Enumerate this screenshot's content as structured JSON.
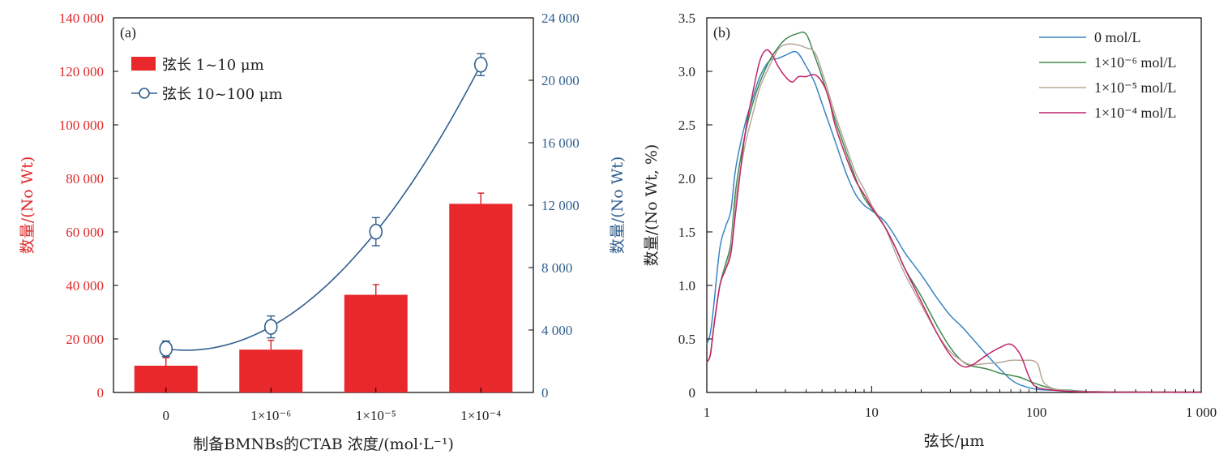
{
  "chart_data": [
    {
      "type": "bar",
      "panel_label": "(a)",
      "xlabel": "制备BMNBs的CTAB 浓度/(mol·L⁻¹)",
      "categories": [
        "0",
        "1×10⁻⁶",
        "1×10⁻⁵",
        "1×10⁻⁴"
      ],
      "ylabel": "数量/(No Wt)",
      "ylim": [
        0,
        140000
      ],
      "yticks": [
        "0",
        "20 000",
        "40 000",
        "60 000",
        "80 000",
        "100 000",
        "120 000",
        "140 000"
      ],
      "y2label": "数量/(No Wt)",
      "y2lim": [
        0,
        24000
      ],
      "y2ticks": [
        "0",
        "4 000",
        "8 000",
        "12 000",
        "16 000",
        "20 000",
        "24 000"
      ],
      "legend_position": "top-left",
      "color_bar": "#e8282a",
      "color_line": "#2f5e8e",
      "series": [
        {
          "name": "弦长 1~10 μm",
          "kind": "bar",
          "axis": "left",
          "values": [
            10000,
            16000,
            36500,
            70500
          ],
          "errors": [
            3000,
            3500,
            3800,
            4000
          ]
        },
        {
          "name": "弦长 10~100 μm",
          "kind": "line",
          "axis": "right",
          "values": [
            2800,
            4200,
            10300,
            21000
          ],
          "errors": [
            500,
            700,
            900,
            700
          ]
        }
      ]
    },
    {
      "type": "line",
      "panel_label": "(b)",
      "xlabel": "弦长/μm",
      "ylabel": "数量/(No Wt, %)",
      "xscale": "log",
      "xlim": [
        1,
        1000
      ],
      "xticks": [
        "1",
        "10",
        "100",
        "1 000"
      ],
      "ylim": [
        0,
        3.5
      ],
      "yticks": [
        "0",
        "0.5",
        "1.0",
        "1.5",
        "2.0",
        "2.5",
        "3.0",
        "3.5"
      ],
      "legend_position": "top-right",
      "series": [
        {
          "name": "0 mol/L",
          "color": "#3a84c4",
          "x": [
            1.0,
            1.05,
            1.1,
            1.2,
            1.3,
            1.4,
            1.5,
            1.7,
            1.9,
            2.1,
            2.4,
            2.7,
            3.0,
            3.5,
            4.0,
            4.5,
            5.0,
            6.0,
            7.0,
            8.0,
            9.0,
            10.0,
            12.0,
            14.0,
            16.0,
            20.0,
            25.0,
            30.0,
            35.0,
            40.0,
            50.0,
            60.0,
            70.0,
            80.0,
            100.0,
            130.0,
            160.0,
            200.0,
            300.0,
            500.0,
            1000.0
          ],
          "y": [
            0.45,
            0.55,
            0.8,
            1.35,
            1.55,
            1.7,
            2.1,
            2.5,
            2.75,
            2.95,
            3.1,
            3.12,
            3.15,
            3.18,
            3.05,
            2.9,
            2.7,
            2.35,
            2.05,
            1.85,
            1.75,
            1.7,
            1.6,
            1.45,
            1.3,
            1.1,
            0.88,
            0.72,
            0.62,
            0.52,
            0.35,
            0.22,
            0.12,
            0.07,
            0.03,
            0.02,
            0.02,
            0.01,
            0.005,
            0.003,
            0.003
          ]
        },
        {
          "name": "1×10⁻⁶ mol/L",
          "color": "#3f8a4c",
          "x": [
            1.0,
            1.05,
            1.1,
            1.2,
            1.3,
            1.4,
            1.5,
            1.7,
            1.9,
            2.1,
            2.4,
            2.7,
            3.0,
            3.5,
            4.0,
            4.5,
            5.0,
            6.0,
            7.0,
            8.0,
            9.0,
            10.0,
            12.0,
            14.0,
            16.0,
            20.0,
            25.0,
            30.0,
            35.0,
            40.0,
            50.0,
            60.0,
            70.0,
            80.0,
            100.0,
            130.0,
            160.0,
            200.0,
            300.0,
            500.0,
            1000.0
          ],
          "y": [
            0.28,
            0.35,
            0.6,
            1.0,
            1.2,
            1.4,
            1.9,
            2.4,
            2.7,
            2.9,
            3.1,
            3.22,
            3.3,
            3.35,
            3.35,
            3.15,
            2.95,
            2.55,
            2.25,
            2.0,
            1.82,
            1.72,
            1.55,
            1.35,
            1.15,
            0.9,
            0.62,
            0.42,
            0.3,
            0.25,
            0.22,
            0.18,
            0.16,
            0.14,
            0.08,
            0.03,
            0.02,
            0.01,
            0.005,
            0.003,
            0.003
          ]
        },
        {
          "name": "1×10⁻⁵ mol/L",
          "color": "#b7a89a",
          "x": [
            1.0,
            1.05,
            1.1,
            1.2,
            1.3,
            1.4,
            1.5,
            1.7,
            1.9,
            2.1,
            2.4,
            2.7,
            3.0,
            3.5,
            4.0,
            4.5,
            5.0,
            6.0,
            7.0,
            8.0,
            9.0,
            10.0,
            12.0,
            14.0,
            16.0,
            20.0,
            25.0,
            30.0,
            35.0,
            40.0,
            50.0,
            60.0,
            70.0,
            80.0,
            100.0,
            110.0,
            130.0,
            160.0,
            200.0,
            300.0,
            500.0,
            1000.0
          ],
          "y": [
            0.28,
            0.35,
            0.6,
            1.0,
            1.15,
            1.35,
            1.8,
            2.3,
            2.6,
            2.85,
            3.05,
            3.2,
            3.25,
            3.25,
            3.22,
            3.18,
            3.0,
            2.6,
            2.3,
            2.05,
            1.9,
            1.75,
            1.55,
            1.3,
            1.1,
            0.82,
            0.55,
            0.38,
            0.3,
            0.26,
            0.27,
            0.28,
            0.3,
            0.3,
            0.28,
            0.1,
            0.03,
            0.015,
            0.01,
            0.005,
            0.003,
            0.003
          ]
        },
        {
          "name": "1×10⁻⁴ mol/L",
          "color": "#c0246a",
          "x": [
            1.0,
            1.05,
            1.1,
            1.2,
            1.3,
            1.4,
            1.5,
            1.7,
            1.9,
            2.1,
            2.3,
            2.5,
            2.7,
            3.0,
            3.3,
            3.6,
            4.0,
            4.5,
            5.0,
            5.5,
            6.0,
            7.0,
            8.0,
            9.0,
            10.0,
            12.0,
            14.0,
            16.0,
            20.0,
            25.0,
            30.0,
            35.0,
            40.0,
            50.0,
            60.0,
            70.0,
            80.0,
            90.0,
            100.0,
            130.0,
            160.0,
            200.0,
            300.0,
            500.0,
            1000.0
          ],
          "y": [
            0.28,
            0.35,
            0.6,
            1.0,
            1.15,
            1.3,
            1.7,
            2.4,
            2.8,
            3.1,
            3.2,
            3.15,
            3.05,
            2.95,
            2.9,
            2.95,
            2.95,
            2.97,
            2.9,
            2.75,
            2.5,
            2.2,
            1.98,
            1.85,
            1.73,
            1.55,
            1.35,
            1.15,
            0.85,
            0.55,
            0.35,
            0.25,
            0.25,
            0.35,
            0.42,
            0.45,
            0.35,
            0.15,
            0.05,
            0.02,
            0.01,
            0.005,
            0.003,
            0.003,
            0.003
          ]
        }
      ]
    }
  ]
}
